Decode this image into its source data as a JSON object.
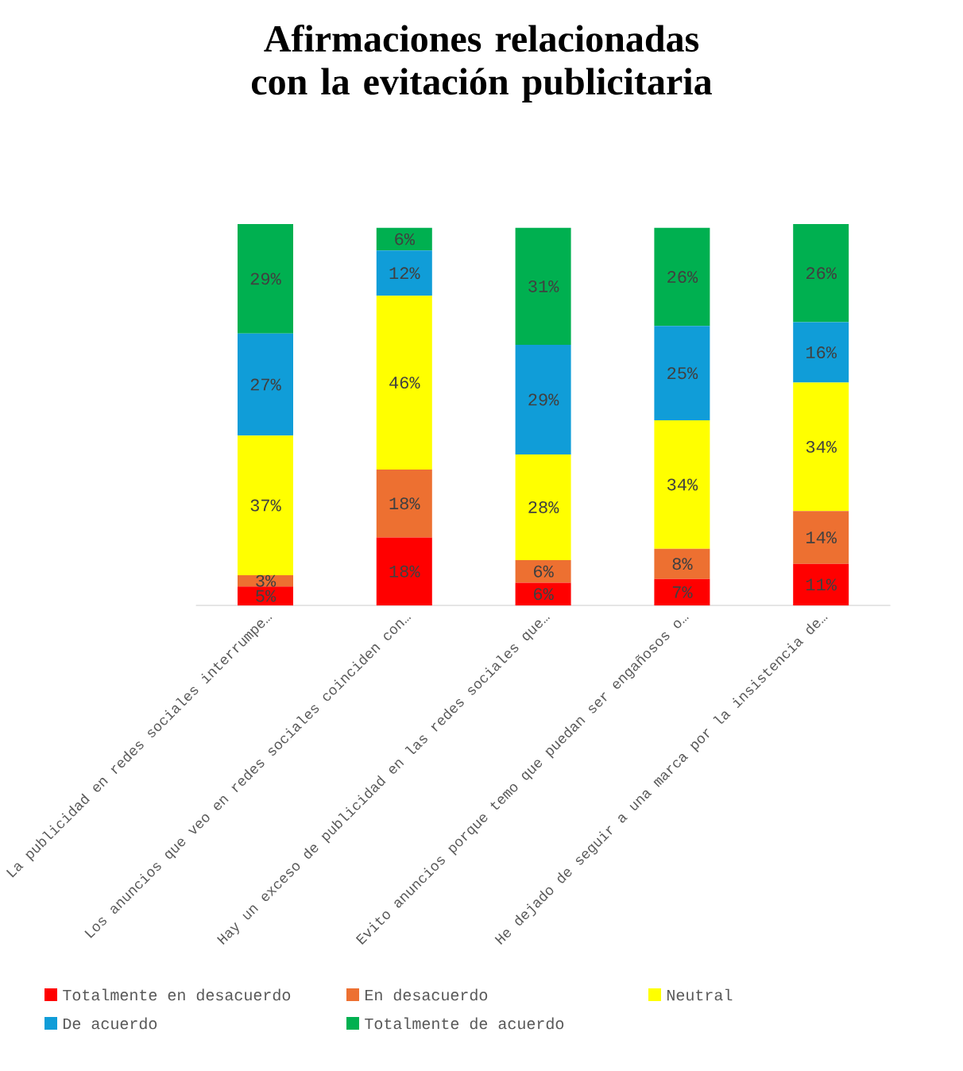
{
  "chart_data": {
    "type": "bar",
    "stacked": true,
    "title": "Afirmaciones relacionadas con la evitación publicitaria",
    "categories": [
      "La publicidad en redes sociales interrumpe…",
      "Los anuncios que veo en redes sociales coinciden con…",
      "Hay un exceso de publicidad en las redes sociales que…",
      "Evito anuncios porque temo que puedan ser engañosos o…",
      "He dejado de seguir a una marca por la insistencia de…"
    ],
    "series": [
      {
        "name": "Totalmente en desacuerdo",
        "color": "#ff0000",
        "values": [
          5,
          18,
          6,
          7,
          11
        ],
        "value_labels": [
          "5%",
          "18%",
          "6%",
          "7%",
          "11%"
        ]
      },
      {
        "name": "En desacuerdo",
        "color": "#ed7031",
        "values": [
          3,
          18,
          6,
          8,
          14
        ],
        "value_labels": [
          "3%",
          "18%",
          "6%",
          "8%",
          "14%"
        ]
      },
      {
        "name": "Neutral",
        "color": "#ffff00",
        "values": [
          37,
          46,
          28,
          34,
          34
        ],
        "value_labels": [
          "37%",
          "46%",
          "28%",
          "34%",
          "34%"
        ]
      },
      {
        "name": "De acuerdo",
        "color": "#109dd8",
        "values": [
          27,
          12,
          29,
          25,
          16
        ],
        "value_labels": [
          "27%",
          "12%",
          "29%",
          "25%",
          "16%"
        ]
      },
      {
        "name": "Totalmente de acuerdo",
        "color": "#00b050",
        "values": [
          29,
          6,
          31,
          26,
          26
        ],
        "value_labels": [
          "29%",
          "6%",
          "31%",
          "26%",
          "26%"
        ]
      }
    ],
    "legend": "bottom"
  }
}
